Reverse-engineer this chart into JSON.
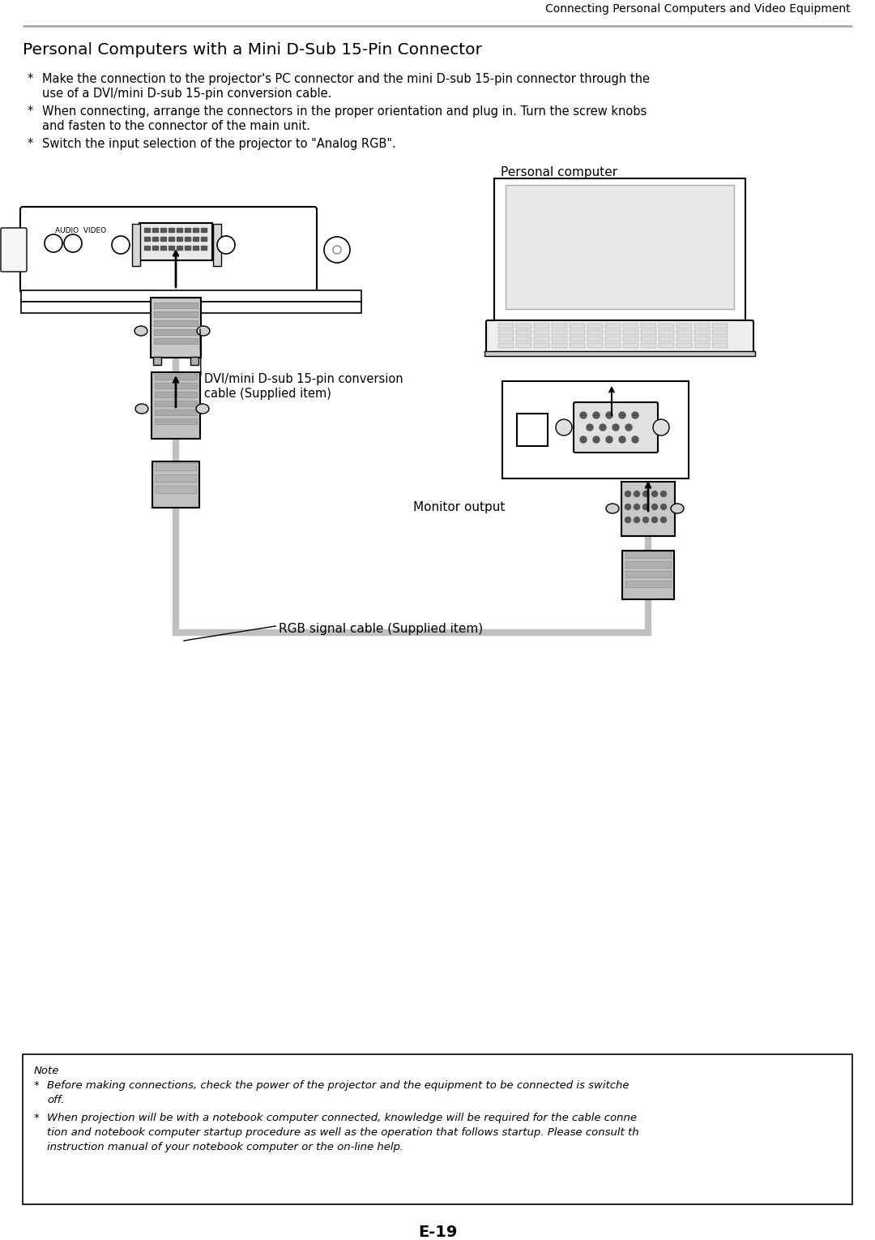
{
  "header_text": "Connecting Personal Computers and Video Equipment",
  "title": "Personal Computers with a Mini D-Sub 15-Pin Connector",
  "bullet1_star": "*",
  "bullet1_line1": "Make the connection to the projector's PC connector and the mini D-sub 15-pin connector through the",
  "bullet1_line2": "use of a DVI/mini D-sub 15-pin conversion cable.",
  "bullet2_star": "*",
  "bullet2_line1": "When connecting, arrange the connectors in the proper orientation and plug in. Turn the screw knobs",
  "bullet2_line2": "and fasten to the connector of the main unit.",
  "bullet3_star": "*",
  "bullet3_line1": "Switch the input selection of the projector to \"Analog RGB\".",
  "label_personal_computer": "Personal computer",
  "label_dvi_line1": "DVI/mini D-sub 15-pin conversion",
  "label_dvi_line2": "cable (Supplied item)",
  "label_monitor": "Monitor output",
  "label_rgb": "RGB signal cable (Supplied item)",
  "audio_video": "AUDIO  VIDEO",
  "note_title": "Note",
  "note_b1_star": "*",
  "note_b1_line1": "Before making connections, check the power of the projector and the equipment to be connected is switche",
  "note_b1_line2": "off.",
  "note_b2_star": "*",
  "note_b2_line1": "When projection will be with a notebook computer connected, knowledge will be required for the cable conne",
  "note_b2_line2": "tion and notebook computer startup procedure as well as the operation that follows startup. Please consult th",
  "note_b2_line3": "instruction manual of your notebook computer or the on-line help.",
  "page_number": "E-19",
  "bg_color": "#ffffff",
  "gray_line": "#999999",
  "connector_gray": "#c0c0c0",
  "dark_gray": "#888888",
  "cable_gray": "#b0b0b0"
}
